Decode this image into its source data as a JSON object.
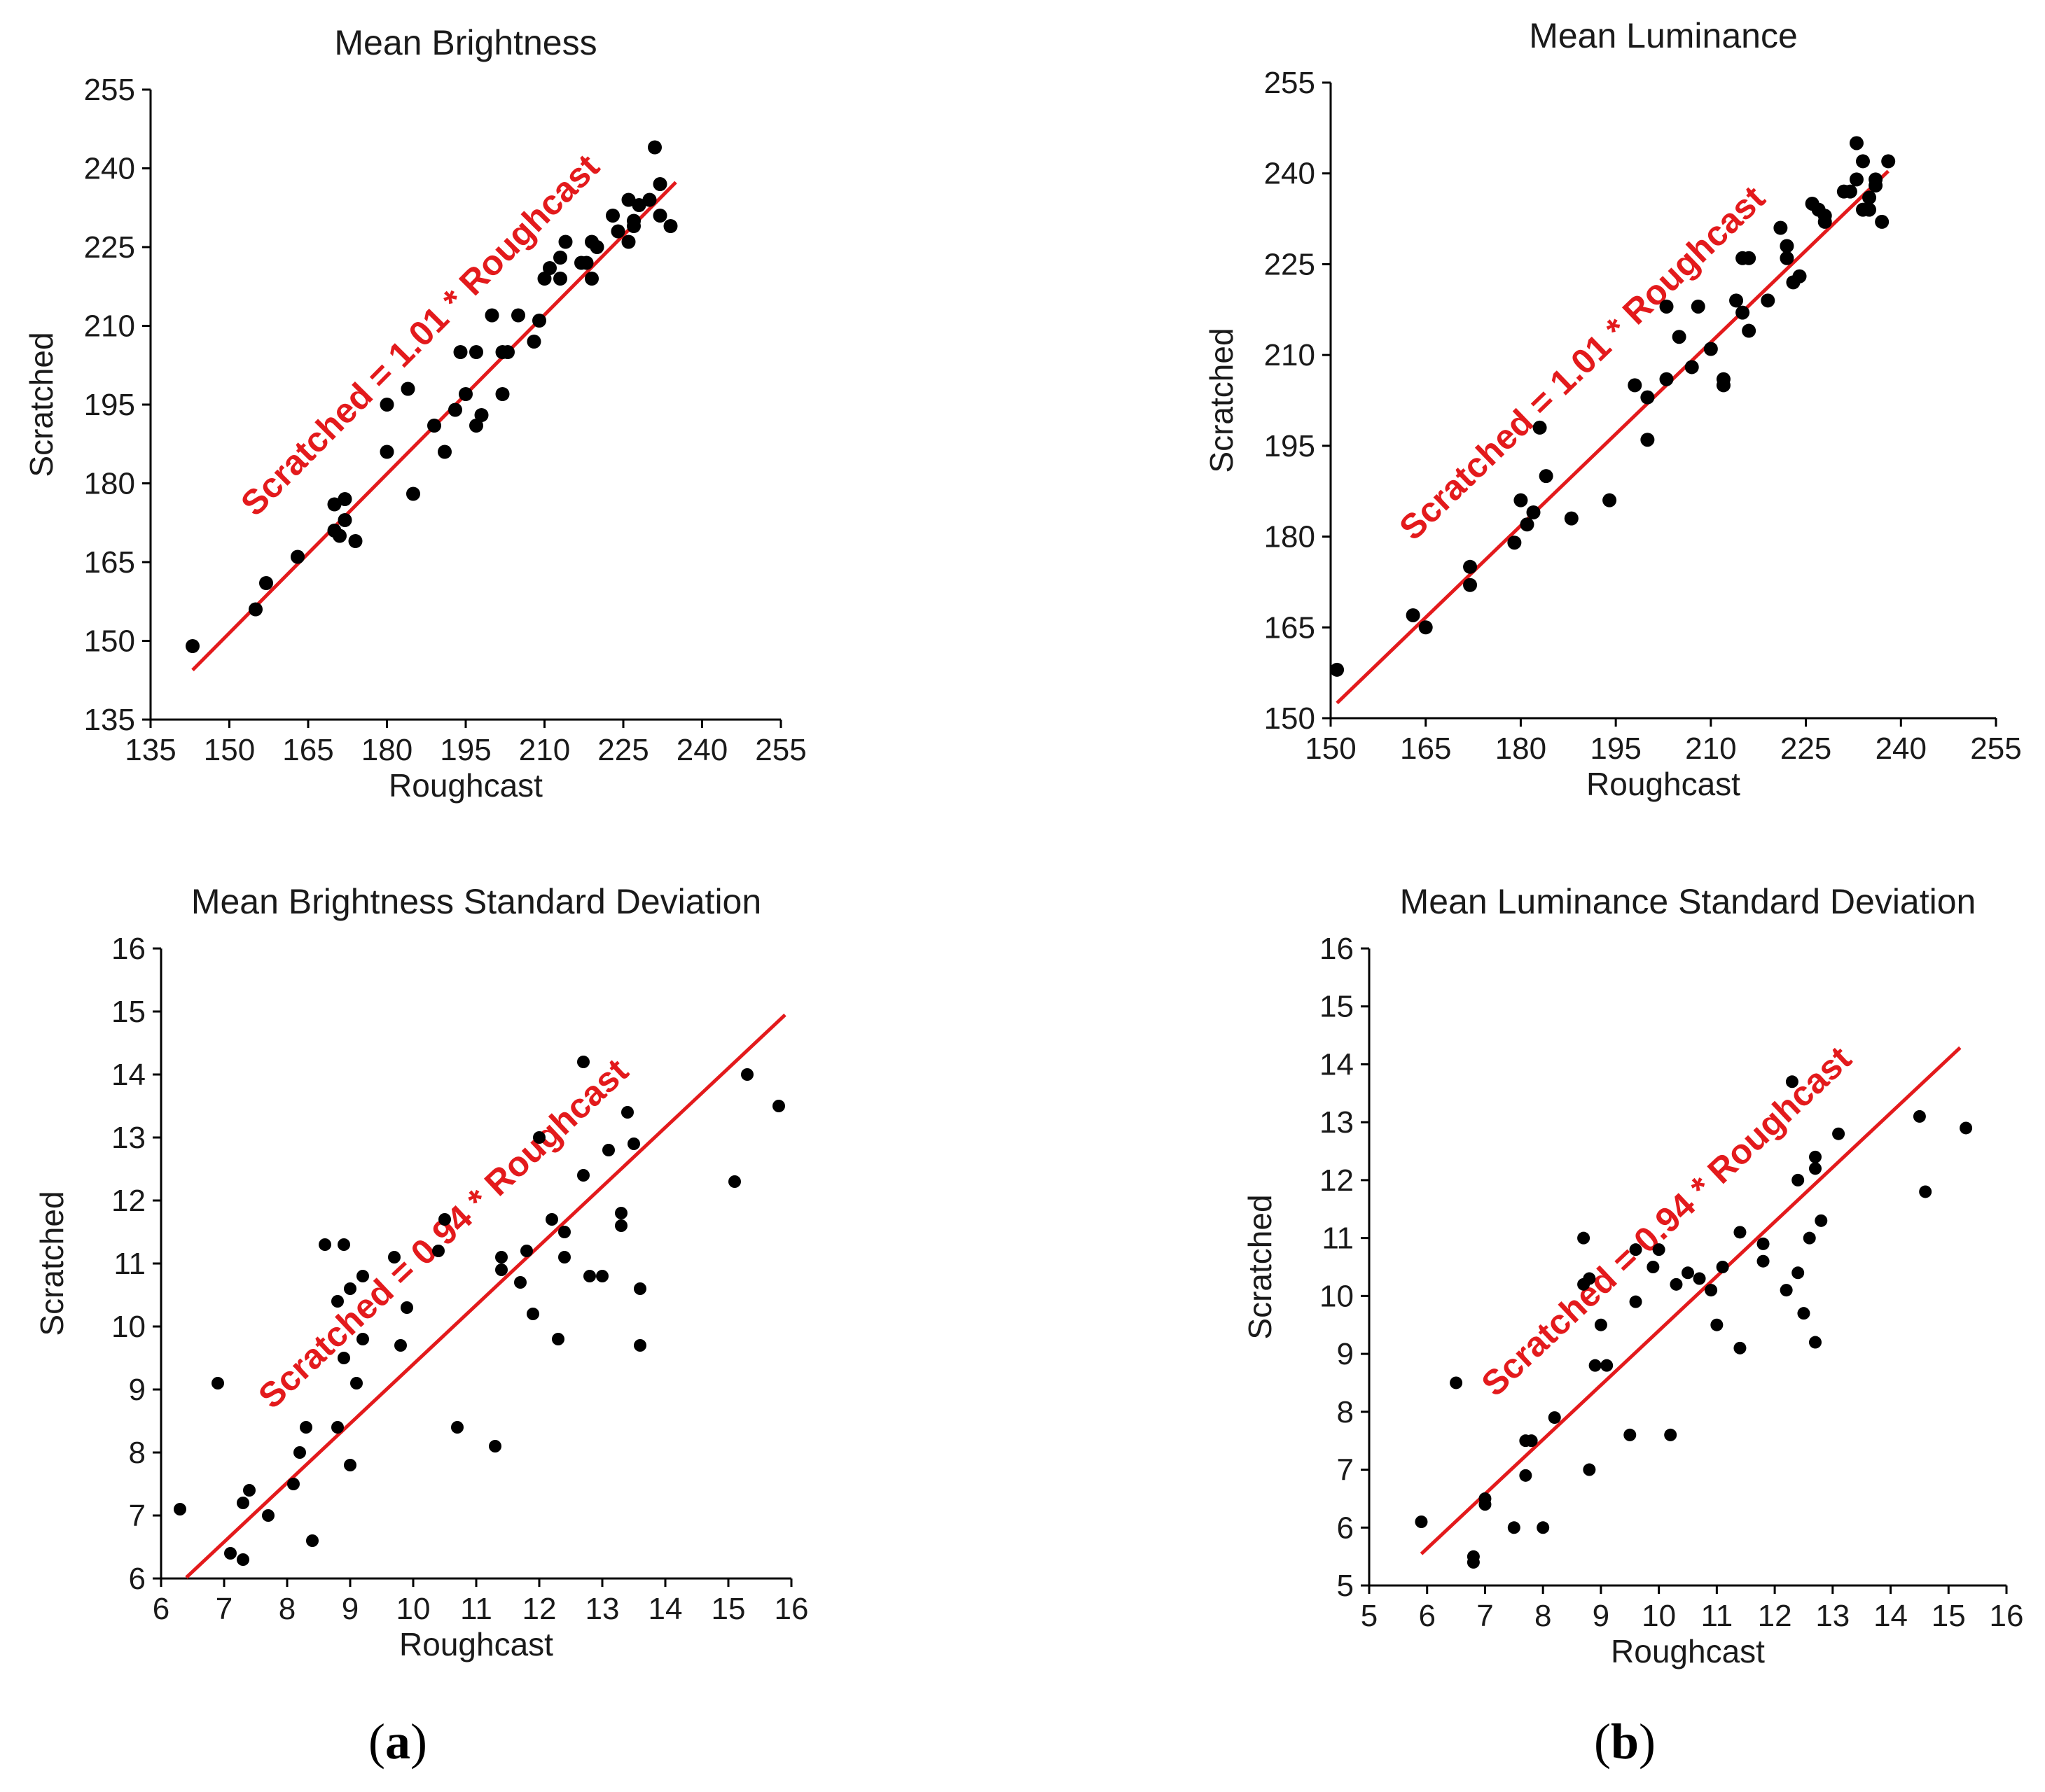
{
  "panel_labels": [
    "a",
    "b"
  ],
  "chart_data": [
    {
      "type": "scatter",
      "title": "Mean Brightness",
      "xlabel": "Roughcast",
      "ylabel": "Scratched",
      "xlim": [
        135,
        255
      ],
      "ylim": [
        135,
        255
      ],
      "xticks": [
        135,
        150,
        165,
        180,
        195,
        210,
        225,
        240,
        255
      ],
      "yticks": [
        135,
        150,
        165,
        180,
        195,
        210,
        225,
        240,
        255
      ],
      "fit": {
        "label": "Scratched = 1.01 * Roughcast",
        "slope": 1.01,
        "x_range": [
          143,
          235
        ],
        "color": "#e31a1c"
      },
      "series": [
        {
          "name": "samples",
          "points": [
            [
              143,
              149
            ],
            [
              155,
              156
            ],
            [
              157,
              161
            ],
            [
              163,
              166
            ],
            [
              170,
              176
            ],
            [
              172,
              177
            ],
            [
              172,
              173
            ],
            [
              170,
              171
            ],
            [
              171,
              170
            ],
            [
              174,
              169
            ],
            [
              180,
              195
            ],
            [
              180,
              186
            ],
            [
              184,
              198
            ],
            [
              185,
              178
            ],
            [
              189,
              191
            ],
            [
              191,
              186
            ],
            [
              193,
              194
            ],
            [
              194,
              205
            ],
            [
              195,
              197
            ],
            [
              197,
              205
            ],
            [
              197,
              191
            ],
            [
              198,
              193
            ],
            [
              200,
              212
            ],
            [
              202,
              205
            ],
            [
              202,
              197
            ],
            [
              203,
              205
            ],
            [
              205,
              212
            ],
            [
              208,
              207
            ],
            [
              209,
              211
            ],
            [
              210,
              219
            ],
            [
              211,
              221
            ],
            [
              213,
              219
            ],
            [
              213,
              223
            ],
            [
              214,
              226
            ],
            [
              217,
              222
            ],
            [
              218,
              222
            ],
            [
              219,
              226
            ],
            [
              219,
              219
            ],
            [
              220,
              225
            ],
            [
              223,
              231
            ],
            [
              224,
              228
            ],
            [
              226,
              226
            ],
            [
              226,
              234
            ],
            [
              227,
              229
            ],
            [
              227,
              230
            ],
            [
              228,
              233
            ],
            [
              230,
              234
            ],
            [
              231,
              244
            ],
            [
              232,
              231
            ],
            [
              232,
              237
            ],
            [
              234,
              229
            ]
          ]
        }
      ]
    },
    {
      "type": "scatter",
      "title": "Mean Luminance",
      "xlabel": "Roughcast",
      "ylabel": "Scratched",
      "xlim": [
        150,
        255
      ],
      "ylim": [
        150,
        255
      ],
      "xticks": [
        150,
        165,
        180,
        195,
        210,
        225,
        240,
        255
      ],
      "yticks": [
        150,
        165,
        180,
        195,
        210,
        225,
        240,
        255
      ],
      "fit": {
        "label": "Scratched = 1.01 * Roughcast",
        "slope": 1.01,
        "x_range": [
          151,
          238
        ],
        "color": "#e31a1c"
      },
      "series": [
        {
          "name": "samples",
          "points": [
            [
              151,
              158
            ],
            [
              163,
              167
            ],
            [
              165,
              165
            ],
            [
              172,
              175
            ],
            [
              172,
              172
            ],
            [
              179,
              179
            ],
            [
              180,
              186
            ],
            [
              181,
              182
            ],
            [
              182,
              184
            ],
            [
              183,
              198
            ],
            [
              184,
              190
            ],
            [
              188,
              183
            ],
            [
              194,
              186
            ],
            [
              198,
              205
            ],
            [
              200,
              196
            ],
            [
              200,
              203
            ],
            [
              203,
              218
            ],
            [
              203,
              206
            ],
            [
              205,
              213
            ],
            [
              207,
              208
            ],
            [
              208,
              218
            ],
            [
              210,
              211
            ],
            [
              212,
              205
            ],
            [
              212,
              206
            ],
            [
              214,
              219
            ],
            [
              215,
              217
            ],
            [
              215,
              226
            ],
            [
              216,
              214
            ],
            [
              216,
              226
            ],
            [
              219,
              219
            ],
            [
              221,
              231
            ],
            [
              222,
              228
            ],
            [
              222,
              226
            ],
            [
              223,
              222
            ],
            [
              224,
              223
            ],
            [
              226,
              235
            ],
            [
              227,
              234
            ],
            [
              228,
              233
            ],
            [
              228,
              232
            ],
            [
              231,
              237
            ],
            [
              232,
              237
            ],
            [
              233,
              239
            ],
            [
              233,
              245
            ],
            [
              234,
              242
            ],
            [
              234,
              234
            ],
            [
              235,
              236
            ],
            [
              235,
              234
            ],
            [
              236,
              239
            ],
            [
              236,
              238
            ],
            [
              237,
              232
            ],
            [
              238,
              242
            ]
          ]
        }
      ]
    },
    {
      "type": "scatter",
      "title": "Mean Brightness Standard Deviation",
      "xlabel": "Roughcast",
      "ylabel": "Scratched",
      "xlim": [
        6,
        16
      ],
      "ylim": [
        6,
        16
      ],
      "xticks": [
        6,
        7,
        8,
        9,
        10,
        11,
        12,
        13,
        14,
        15,
        16
      ],
      "yticks": [
        6,
        7,
        8,
        9,
        10,
        11,
        12,
        13,
        14,
        15,
        16
      ],
      "fit": {
        "label": "Scratched = 0.94 * Roughcast",
        "slope": 0.94,
        "x_range": [
          6.4,
          15.9
        ],
        "color": "#e31a1c"
      },
      "series": [
        {
          "name": "samples",
          "points": [
            [
              6.3,
              7.1
            ],
            [
              6.9,
              9.1
            ],
            [
              7.1,
              6.4
            ],
            [
              7.3,
              6.3
            ],
            [
              7.3,
              7.2
            ],
            [
              7.4,
              7.4
            ],
            [
              7.7,
              7.0
            ],
            [
              8.1,
              7.5
            ],
            [
              8.2,
              8.0
            ],
            [
              8.3,
              8.4
            ],
            [
              8.4,
              6.6
            ],
            [
              8.6,
              11.3
            ],
            [
              8.8,
              8.4
            ],
            [
              8.8,
              10.4
            ],
            [
              8.9,
              9.5
            ],
            [
              8.9,
              11.3
            ],
            [
              9.0,
              7.8
            ],
            [
              9.0,
              10.6
            ],
            [
              9.1,
              9.1
            ],
            [
              9.2,
              10.8
            ],
            [
              9.2,
              9.8
            ],
            [
              9.7,
              11.1
            ],
            [
              9.8,
              9.7
            ],
            [
              9.9,
              10.3
            ],
            [
              10.4,
              11.2
            ],
            [
              10.5,
              11.7
            ],
            [
              10.7,
              8.4
            ],
            [
              11.3,
              8.1
            ],
            [
              11.4,
              11.1
            ],
            [
              11.4,
              10.9
            ],
            [
              11.7,
              10.7
            ],
            [
              11.8,
              11.2
            ],
            [
              11.9,
              10.2
            ],
            [
              12.0,
              13.0
            ],
            [
              12.2,
              11.7
            ],
            [
              12.3,
              9.8
            ],
            [
              12.4,
              11.1
            ],
            [
              12.4,
              11.5
            ],
            [
              12.7,
              14.2
            ],
            [
              12.7,
              12.4
            ],
            [
              12.8,
              10.8
            ],
            [
              13.0,
              10.8
            ],
            [
              13.1,
              12.8
            ],
            [
              13.3,
              11.8
            ],
            [
              13.3,
              11.6
            ],
            [
              13.4,
              13.4
            ],
            [
              13.5,
              12.9
            ],
            [
              13.6,
              10.6
            ],
            [
              13.6,
              9.7
            ],
            [
              15.1,
              12.3
            ],
            [
              15.3,
              14.0
            ],
            [
              15.8,
              13.5
            ]
          ]
        }
      ]
    },
    {
      "type": "scatter",
      "title": "Mean Luminance Standard Deviation",
      "xlabel": "Roughcast",
      "ylabel": "Scratched",
      "xlim": [
        5,
        16
      ],
      "ylim": [
        5,
        16
      ],
      "xticks": [
        5,
        6,
        7,
        8,
        9,
        10,
        11,
        12,
        13,
        14,
        15,
        16
      ],
      "yticks": [
        5,
        6,
        7,
        8,
        9,
        10,
        11,
        12,
        13,
        14,
        15,
        16
      ],
      "fit": {
        "label": "Scratched = 0.94 * Roughcast",
        "slope": 0.94,
        "x_range": [
          5.9,
          15.2
        ],
        "color": "#e31a1c"
      },
      "series": [
        {
          "name": "samples",
          "points": [
            [
              5.9,
              6.1
            ],
            [
              6.5,
              8.5
            ],
            [
              6.8,
              5.5
            ],
            [
              6.8,
              5.4
            ],
            [
              7.0,
              6.5
            ],
            [
              7.0,
              6.4
            ],
            [
              7.5,
              6.0
            ],
            [
              7.7,
              6.9
            ],
            [
              7.7,
              7.5
            ],
            [
              7.8,
              7.5
            ],
            [
              8.0,
              6.0
            ],
            [
              8.2,
              7.9
            ],
            [
              8.7,
              11.0
            ],
            [
              8.7,
              10.2
            ],
            [
              8.8,
              10.3
            ],
            [
              8.8,
              7.0
            ],
            [
              8.9,
              8.8
            ],
            [
              9.0,
              9.5
            ],
            [
              9.1,
              8.8
            ],
            [
              9.5,
              7.6
            ],
            [
              9.6,
              10.8
            ],
            [
              9.6,
              9.9
            ],
            [
              9.9,
              10.5
            ],
            [
              10.0,
              10.8
            ],
            [
              10.2,
              7.6
            ],
            [
              10.3,
              10.2
            ],
            [
              10.5,
              10.4
            ],
            [
              10.7,
              10.3
            ],
            [
              10.9,
              10.1
            ],
            [
              11.0,
              9.5
            ],
            [
              11.1,
              10.5
            ],
            [
              11.4,
              11.1
            ],
            [
              11.4,
              9.1
            ],
            [
              11.8,
              10.9
            ],
            [
              11.8,
              10.6
            ],
            [
              12.2,
              10.1
            ],
            [
              12.3,
              13.7
            ],
            [
              12.4,
              12.0
            ],
            [
              12.4,
              10.4
            ],
            [
              12.5,
              9.7
            ],
            [
              12.6,
              11.0
            ],
            [
              12.7,
              12.2
            ],
            [
              12.7,
              12.4
            ],
            [
              12.7,
              9.2
            ],
            [
              12.8,
              11.3
            ],
            [
              13.1,
              12.8
            ],
            [
              14.5,
              13.1
            ],
            [
              14.6,
              11.8
            ],
            [
              15.3,
              12.9
            ]
          ]
        }
      ]
    }
  ]
}
